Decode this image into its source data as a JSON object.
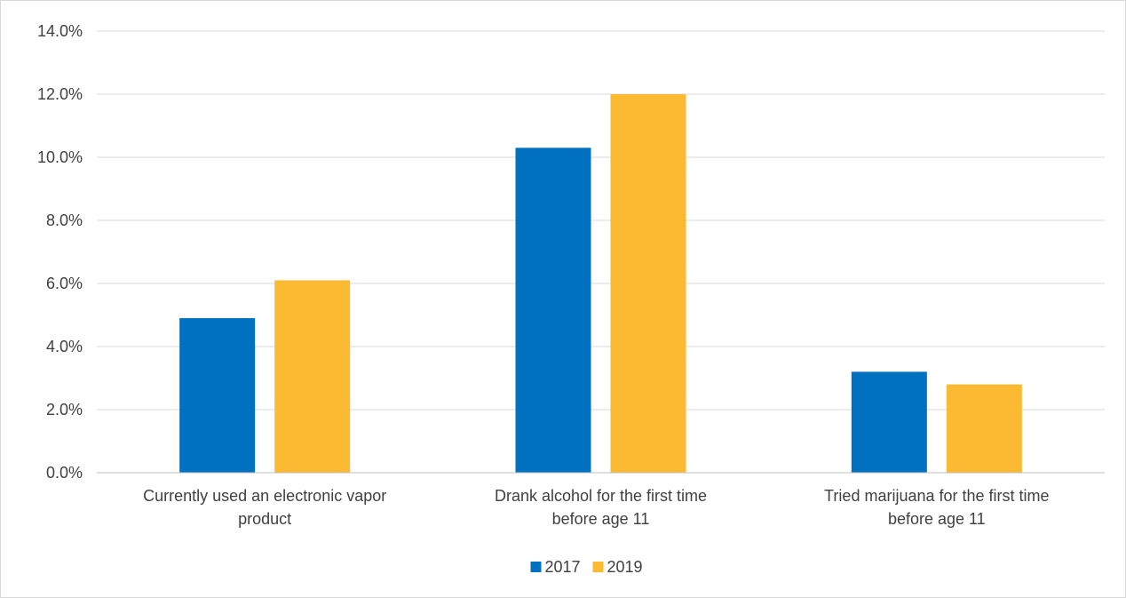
{
  "chart_data": {
    "type": "bar",
    "title": "",
    "xlabel": "",
    "ylabel": "",
    "categories": [
      [
        "Currently used an electronic vapor",
        "product"
      ],
      [
        "Drank alcohol for the first time",
        "before age 11"
      ],
      [
        "Tried marijuana for the first time",
        "before age 11"
      ]
    ],
    "series": [
      {
        "name": "2017",
        "color": "#0070C0",
        "values": [
          4.9,
          10.3,
          3.2
        ]
      },
      {
        "name": "2019",
        "color": "#FBBA32",
        "values": [
          6.1,
          12.0,
          2.8
        ]
      }
    ],
    "ylim": [
      0,
      14
    ],
    "yticks": [
      0,
      2,
      4,
      6,
      8,
      10,
      12,
      14
    ],
    "ytick_labels": [
      "0.0%",
      "2.0%",
      "4.0%",
      "6.0%",
      "8.0%",
      "10.0%",
      "12.0%",
      "14.0%"
    ],
    "grid": true,
    "legend_position": "bottom"
  }
}
